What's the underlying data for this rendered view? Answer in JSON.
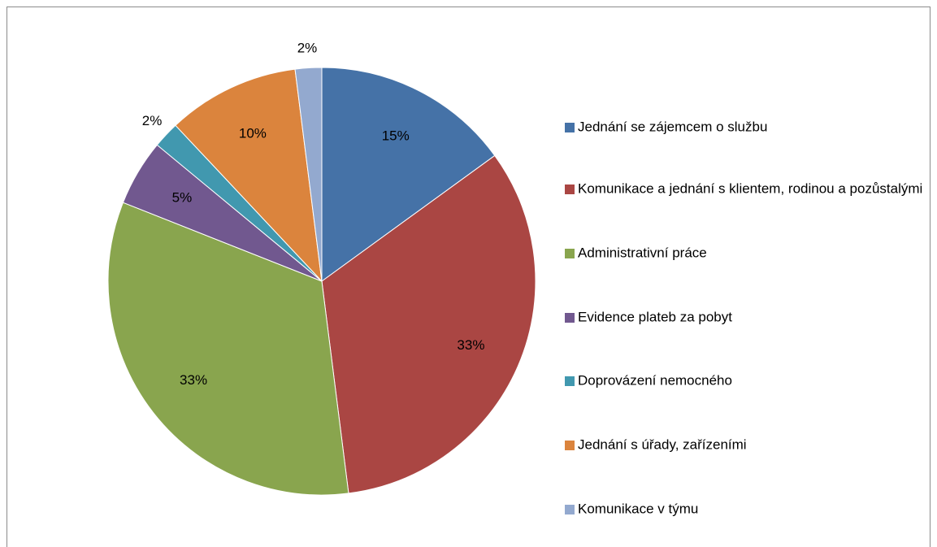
{
  "chart_data": {
    "type": "pie",
    "categories": [
      "Jednání se zájemcem o službu",
      "Komunikace a jednání s klientem, rodinou a pozůstalými",
      "Administrativní práce",
      "Evidence plateb za pobyt",
      "Doprovázení nemocného",
      "Jednání s úřady, zařízeními",
      "Komunikace v týmu"
    ],
    "values": [
      15,
      33,
      33,
      5,
      2,
      10,
      2
    ],
    "value_labels": [
      "15%",
      "33%",
      "33%",
      "5%",
      "2%",
      "10%",
      "2%"
    ],
    "colors": [
      "#4572a7",
      "#aa4643",
      "#89a54e",
      "#71588f",
      "#4198af",
      "#db843d",
      "#93a9cf"
    ],
    "legend": "right"
  }
}
